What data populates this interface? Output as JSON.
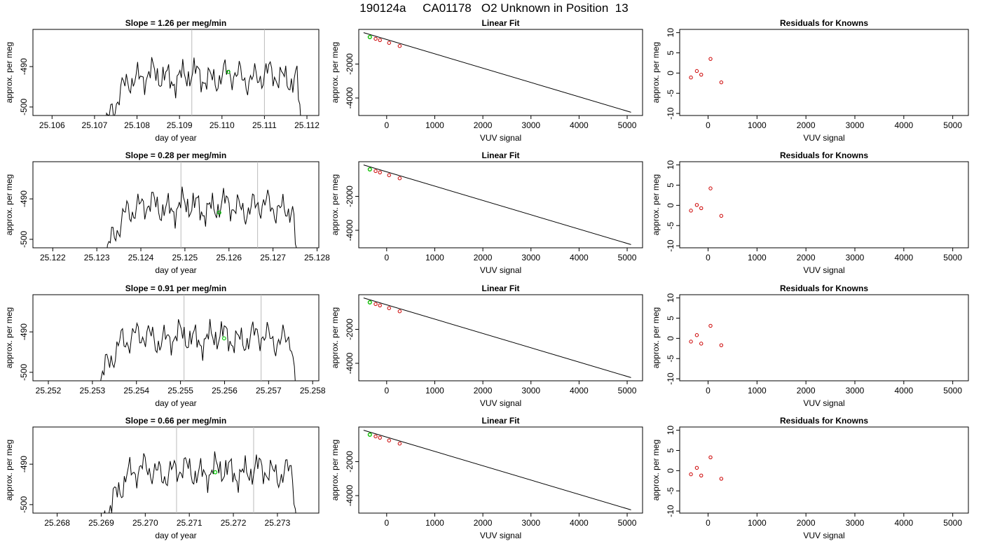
{
  "title": "190124a     CA01178   O2 Unknown in Position  13",
  "colors": {
    "trace": "#000000",
    "highlight": "#00cc00",
    "knowns": "#cc0000",
    "marker_lines": "#bbbbbb",
    "axes": "#000000"
  },
  "chart_data": [
    {
      "row": 1,
      "panel": "timeseries",
      "type": "line",
      "title": "Slope =  1.26  per meg/min",
      "xlabel": "day of year",
      "ylabel": "approx. per meg",
      "xlim": [
        25.10555,
        25.11228
      ],
      "ylim": [
        -502.1,
        -480.8
      ],
      "x_ticks": [
        "25.106",
        "25.107",
        "25.108",
        "25.109",
        "25.110",
        "25.111",
        "25.112"
      ],
      "x_tick_values": [
        25.106,
        25.107,
        25.108,
        25.109,
        25.11,
        25.111,
        25.112
      ],
      "y_ticks": [
        "-500",
        "-490"
      ],
      "y_tick_values": [
        -500,
        -490
      ],
      "trace_start": 25.10725,
      "trace_end": 25.1119,
      "trace_level": -492.5,
      "marker_lines": [
        25.10929,
        25.111
      ],
      "highlight_point": {
        "x": 25.11015,
        "y": -491.3
      }
    },
    {
      "row": 1,
      "panel": "linear_fit",
      "type": "scatter",
      "title": "Linear Fit",
      "xlabel": "VUV signal",
      "ylabel": "approx. per meg",
      "xlim": [
        -580,
        5320
      ],
      "ylim": [
        -5030,
        40
      ],
      "x_ticks": [
        "0",
        "1000",
        "2000",
        "3000",
        "4000",
        "5000"
      ],
      "x_tick_values": [
        0,
        1000,
        2000,
        3000,
        4000,
        5000
      ],
      "y_ticks": [
        "-4000",
        "-2000"
      ],
      "y_tick_values": [
        -4000,
        -2000
      ],
      "fit_line": {
        "x": [
          -480,
          5080
        ],
        "y": [
          -150,
          -4840
        ]
      },
      "knowns": {
        "x": [
          -350,
          -230,
          -140,
          50,
          270
        ],
        "y": [
          -409,
          -512,
          -590,
          -753,
          -938
        ]
      },
      "highlight_point": {
        "x": -350,
        "y": -410
      }
    },
    {
      "row": 1,
      "panel": "residuals",
      "type": "scatter",
      "title": "Residuals for Knowns",
      "xlabel": "VUV signal",
      "ylabel": "approx. per meg",
      "xlim": [
        -580,
        5320
      ],
      "ylim": [
        -10.5,
        10.8
      ],
      "x_ticks": [
        "0",
        "1000",
        "2000",
        "3000",
        "4000",
        "5000"
      ],
      "x_tick_values": [
        0,
        1000,
        2000,
        3000,
        4000,
        5000
      ],
      "y_ticks": [
        "-10",
        "-5",
        "0",
        "5",
        "10"
      ],
      "y_tick_values": [
        -10,
        -5,
        0,
        5,
        10
      ],
      "knowns": {
        "x": [
          -350,
          -230,
          -140,
          50,
          270
        ],
        "y": [
          -1.1,
          0.5,
          -0.4,
          3.5,
          -2.3
        ]
      }
    },
    {
      "row": 2,
      "panel": "timeseries",
      "type": "line",
      "title": "Slope =  0.28  per meg/min",
      "xlabel": "day of year",
      "ylabel": "approx. per meg",
      "xlim": [
        25.12155,
        25.12804
      ],
      "ylim": [
        -502.1,
        -480.8
      ],
      "x_ticks": [
        "25.122",
        "25.123",
        "25.124",
        "25.125",
        "25.126",
        "25.127",
        "25.128"
      ],
      "x_tick_values": [
        25.122,
        25.123,
        25.124,
        25.125,
        25.126,
        25.127,
        25.128
      ],
      "y_ticks": [
        "-500",
        "-490"
      ],
      "y_tick_values": [
        -500,
        -490
      ],
      "trace_start": 25.12318,
      "trace_end": 25.12757,
      "trace_level": -492.0,
      "marker_lines": [
        25.12491,
        25.12665
      ],
      "highlight_point": {
        "x": 25.12578,
        "y": -493.4
      }
    },
    {
      "row": 2,
      "panel": "linear_fit",
      "type": "scatter",
      "title": "Linear Fit",
      "xlabel": "VUV signal",
      "ylabel": "approx. per meg",
      "xlim": [
        -580,
        5320
      ],
      "ylim": [
        -5030,
        40
      ],
      "x_ticks": [
        "0",
        "1000",
        "2000",
        "3000",
        "4000",
        "5000"
      ],
      "x_tick_values": [
        0,
        1000,
        2000,
        3000,
        4000,
        5000
      ],
      "y_ticks": [
        "-4000",
        "-2000"
      ],
      "y_tick_values": [
        -4000,
        -2000
      ],
      "fit_line": {
        "x": [
          -480,
          5080
        ],
        "y": [
          -150,
          -4840
        ]
      },
      "knowns": {
        "x": [
          -350,
          -230,
          -140,
          50,
          270
        ],
        "y": [
          -409,
          -512,
          -590,
          -753,
          -938
        ]
      },
      "highlight_point": {
        "x": -350,
        "y": -410
      }
    },
    {
      "row": 2,
      "panel": "residuals",
      "type": "scatter",
      "title": "Residuals for Knowns",
      "xlabel": "VUV signal",
      "ylabel": "approx. per meg",
      "xlim": [
        -580,
        5320
      ],
      "ylim": [
        -10.5,
        10.8
      ],
      "x_ticks": [
        "0",
        "1000",
        "2000",
        "3000",
        "4000",
        "5000"
      ],
      "x_tick_values": [
        0,
        1000,
        2000,
        3000,
        4000,
        5000
      ],
      "y_ticks": [
        "-10",
        "-5",
        "0",
        "5",
        "10"
      ],
      "y_tick_values": [
        -10,
        -5,
        0,
        5,
        10
      ],
      "knowns": {
        "x": [
          -350,
          -230,
          -140,
          50,
          270
        ],
        "y": [
          -1.3,
          0.1,
          -0.7,
          4.2,
          -2.6
        ]
      }
    },
    {
      "row": 3,
      "panel": "timeseries",
      "type": "line",
      "title": "Slope =  0.91  per meg/min",
      "xlabel": "day of year",
      "ylabel": "approx. per meg",
      "xlim": [
        25.25165,
        25.25814
      ],
      "ylim": [
        -502.1,
        -480.8
      ],
      "x_ticks": [
        "25.252",
        "25.253",
        "25.254",
        "25.255",
        "25.256",
        "25.257",
        "25.258"
      ],
      "x_tick_values": [
        25.252,
        25.253,
        25.254,
        25.255,
        25.256,
        25.257,
        25.258
      ],
      "y_ticks": [
        "-500",
        "-490"
      ],
      "y_tick_values": [
        -500,
        -490
      ],
      "trace_start": 25.2531,
      "trace_end": 25.25765,
      "trace_level": -491.5,
      "marker_lines": [
        25.25508,
        25.25683
      ],
      "highlight_point": {
        "x": 25.25599,
        "y": -491.6
      }
    },
    {
      "row": 3,
      "panel": "linear_fit",
      "type": "scatter",
      "title": "Linear Fit",
      "xlabel": "VUV signal",
      "ylabel": "approx. per meg",
      "xlim": [
        -580,
        5320
      ],
      "ylim": [
        -5030,
        40
      ],
      "x_ticks": [
        "0",
        "1000",
        "2000",
        "3000",
        "4000",
        "5000"
      ],
      "x_tick_values": [
        0,
        1000,
        2000,
        3000,
        4000,
        5000
      ],
      "y_ticks": [
        "-4000",
        "-2000"
      ],
      "y_tick_values": [
        -4000,
        -2000
      ],
      "fit_line": {
        "x": [
          -480,
          5080
        ],
        "y": [
          -150,
          -4840
        ]
      },
      "knowns": {
        "x": [
          -350,
          -230,
          -140,
          50,
          270
        ],
        "y": [
          -409,
          -512,
          -590,
          -753,
          -938
        ]
      },
      "highlight_point": {
        "x": -350,
        "y": -410
      }
    },
    {
      "row": 3,
      "panel": "residuals",
      "type": "scatter",
      "title": "Residuals for Knowns",
      "xlabel": "VUV signal",
      "ylabel": "approx. per meg",
      "xlim": [
        -580,
        5320
      ],
      "ylim": [
        -10.5,
        10.8
      ],
      "x_ticks": [
        "0",
        "1000",
        "2000",
        "3000",
        "4000",
        "5000"
      ],
      "x_tick_values": [
        0,
        1000,
        2000,
        3000,
        4000,
        5000
      ],
      "y_ticks": [
        "-10",
        "-5",
        "0",
        "5",
        "10"
      ],
      "y_tick_values": [
        -10,
        -5,
        0,
        5,
        10
      ],
      "knowns": {
        "x": [
          -350,
          -230,
          -140,
          50,
          270
        ],
        "y": [
          -0.8,
          0.8,
          -1.3,
          3.1,
          -1.7
        ]
      }
    },
    {
      "row": 4,
      "panel": "timeseries",
      "type": "line",
      "title": "Slope =  0.66  per meg/min",
      "xlabel": "day of year",
      "ylabel": "approx. per meg",
      "xlim": [
        25.26745,
        25.27394
      ],
      "ylim": [
        -502.1,
        -480.8
      ],
      "x_ticks": [
        "25.268",
        "25.269",
        "25.270",
        "25.271",
        "25.272",
        "25.273"
      ],
      "x_tick_values": [
        25.268,
        25.269,
        25.27,
        25.271,
        25.272,
        25.273
      ],
      "y_ticks": [
        "-500",
        "-490"
      ],
      "y_tick_values": [
        -500,
        -490
      ],
      "trace_start": 25.26905,
      "trace_end": 25.27347,
      "trace_level": -491.8,
      "marker_lines": [
        25.27071,
        25.27246
      ],
      "highlight_point": {
        "x": 25.27159,
        "y": -492.0
      }
    },
    {
      "row": 4,
      "panel": "linear_fit",
      "type": "scatter",
      "title": "Linear Fit",
      "xlabel": "VUV signal",
      "ylabel": "approx. per meg",
      "xlim": [
        -580,
        5320
      ],
      "ylim": [
        -5030,
        40
      ],
      "x_ticks": [
        "0",
        "1000",
        "2000",
        "3000",
        "4000",
        "5000"
      ],
      "x_tick_values": [
        0,
        1000,
        2000,
        3000,
        4000,
        5000
      ],
      "y_ticks": [
        "-4000",
        "-2000"
      ],
      "y_tick_values": [
        -4000,
        -2000
      ],
      "fit_line": {
        "x": [
          -480,
          5080
        ],
        "y": [
          -150,
          -4840
        ]
      },
      "knowns": {
        "x": [
          -350,
          -230,
          -140,
          50,
          270
        ],
        "y": [
          -409,
          -512,
          -590,
          -753,
          -938
        ]
      },
      "highlight_point": {
        "x": -350,
        "y": -410
      }
    },
    {
      "row": 4,
      "panel": "residuals",
      "type": "scatter",
      "title": "Residuals for Knowns",
      "xlabel": "VUV signal",
      "ylabel": "approx. per meg",
      "xlim": [
        -580,
        5320
      ],
      "ylim": [
        -10.5,
        10.8
      ],
      "x_ticks": [
        "0",
        "1000",
        "2000",
        "3000",
        "4000",
        "5000"
      ],
      "x_tick_values": [
        0,
        1000,
        2000,
        3000,
        4000,
        5000
      ],
      "y_ticks": [
        "-10",
        "-5",
        "0",
        "5",
        "10"
      ],
      "y_tick_values": [
        -10,
        -5,
        0,
        5,
        10
      ],
      "knowns": {
        "x": [
          -350,
          -230,
          -140,
          50,
          270
        ],
        "y": [
          -0.9,
          0.7,
          -1.2,
          3.3,
          -2.0
        ]
      }
    }
  ]
}
